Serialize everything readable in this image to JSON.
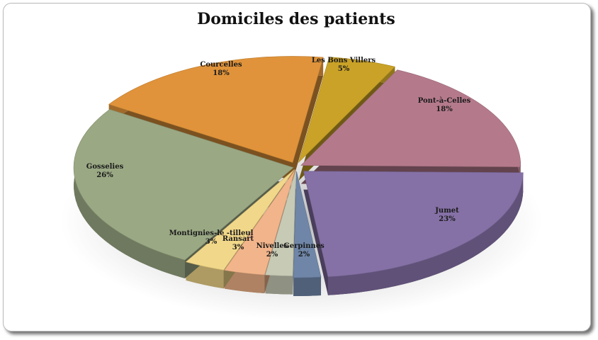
{
  "chart_data": {
    "type": "pie",
    "title": "Domiciles des patients",
    "slices": [
      {
        "label": "Les Bons Villers",
        "value": 5,
        "value_label": "5%",
        "color": "#c9a227"
      },
      {
        "label": "Pont-à-Celles",
        "value": 18,
        "value_label": "18%",
        "color": "#b47a8c"
      },
      {
        "label": "Jumet",
        "value": 23,
        "value_label": "23%",
        "color": "#8571a6"
      },
      {
        "label": "Gerpinnes",
        "value": 2,
        "value_label": "2%",
        "color": "#6f86a8"
      },
      {
        "label": "Nivelles",
        "value": 2,
        "value_label": "2%",
        "color": "#c7cab5"
      },
      {
        "label": "Ransart",
        "value": 3,
        "value_label": "3%",
        "color": "#f2b48a"
      },
      {
        "label": "Montignies-le -tilleul",
        "value": 3,
        "value_label": "3%",
        "color": "#f1d789"
      },
      {
        "label": "Gosselies",
        "value": 26,
        "value_label": "26%",
        "color": "#9aa884"
      },
      {
        "label": "Courcelles",
        "value": 18,
        "value_label": "18%",
        "color": "#e0933a"
      }
    ],
    "legend": "none",
    "style": "3d-exploded"
  }
}
